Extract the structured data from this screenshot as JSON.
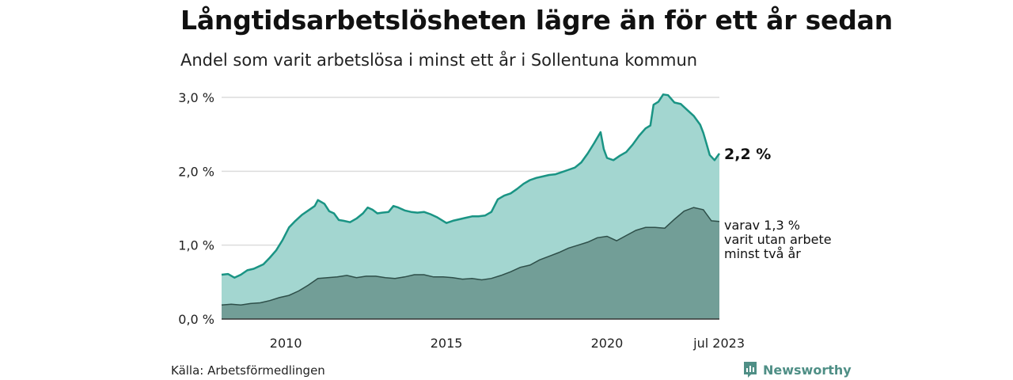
{
  "title": "Långtidsarbetslösheten lägre än för ett år sedan",
  "subtitle": "Andel som varit arbetslösa i minst ett år i Sollentuna kommun",
  "source": "Källa: Arbetsförmedlingen",
  "logo": {
    "text": "Newsworthy",
    "icon": "newsworthy-logo-icon",
    "color": "#4f8f86"
  },
  "chart_data": {
    "type": "area",
    "ylim": [
      0,
      3.0
    ],
    "grid": true,
    "y_ticks": [
      {
        "value": 0,
        "label": "0,0 %"
      },
      {
        "value": 1,
        "label": "1,0 %"
      },
      {
        "value": 2,
        "label": "2,0 %"
      },
      {
        "value": 3,
        "label": "3,0 %"
      }
    ],
    "x_range": [
      2008.0,
      2023.5
    ],
    "x_ticks": [
      {
        "value": 2010,
        "label": "2010"
      },
      {
        "value": 2015,
        "label": "2015"
      },
      {
        "value": 2020,
        "label": "2020"
      },
      {
        "value": 2023.5,
        "label": "jul 2023"
      }
    ],
    "series": [
      {
        "key": "total",
        "color": "#1a9484",
        "fill": "#a3d6d0",
        "end_label": "2,2 %",
        "points": [
          [
            2008.0,
            0.6
          ],
          [
            2008.2,
            0.61
          ],
          [
            2008.4,
            0.56
          ],
          [
            2008.6,
            0.6
          ],
          [
            2008.8,
            0.66
          ],
          [
            2009.0,
            0.68
          ],
          [
            2009.3,
            0.74
          ],
          [
            2009.5,
            0.83
          ],
          [
            2009.7,
            0.93
          ],
          [
            2009.9,
            1.07
          ],
          [
            2010.1,
            1.24
          ],
          [
            2010.3,
            1.33
          ],
          [
            2010.5,
            1.41
          ],
          [
            2010.7,
            1.47
          ],
          [
            2010.9,
            1.53
          ],
          [
            2011.0,
            1.61
          ],
          [
            2011.2,
            1.56
          ],
          [
            2011.35,
            1.46
          ],
          [
            2011.5,
            1.43
          ],
          [
            2011.65,
            1.34
          ],
          [
            2011.8,
            1.33
          ],
          [
            2012.0,
            1.31
          ],
          [
            2012.2,
            1.36
          ],
          [
            2012.4,
            1.43
          ],
          [
            2012.55,
            1.51
          ],
          [
            2012.7,
            1.48
          ],
          [
            2012.85,
            1.43
          ],
          [
            2013.0,
            1.44
          ],
          [
            2013.2,
            1.45
          ],
          [
            2013.35,
            1.53
          ],
          [
            2013.5,
            1.51
          ],
          [
            2013.7,
            1.47
          ],
          [
            2013.9,
            1.45
          ],
          [
            2014.1,
            1.44
          ],
          [
            2014.3,
            1.45
          ],
          [
            2014.5,
            1.42
          ],
          [
            2014.7,
            1.38
          ],
          [
            2014.85,
            1.34
          ],
          [
            2015.0,
            1.3
          ],
          [
            2015.2,
            1.33
          ],
          [
            2015.4,
            1.35
          ],
          [
            2015.6,
            1.37
          ],
          [
            2015.8,
            1.39
          ],
          [
            2016.0,
            1.39
          ],
          [
            2016.2,
            1.4
          ],
          [
            2016.4,
            1.45
          ],
          [
            2016.6,
            1.62
          ],
          [
            2016.8,
            1.67
          ],
          [
            2017.0,
            1.7
          ],
          [
            2017.2,
            1.76
          ],
          [
            2017.4,
            1.83
          ],
          [
            2017.6,
            1.88
          ],
          [
            2017.8,
            1.91
          ],
          [
            2018.0,
            1.93
          ],
          [
            2018.2,
            1.95
          ],
          [
            2018.4,
            1.96
          ],
          [
            2018.6,
            1.99
          ],
          [
            2018.8,
            2.02
          ],
          [
            2019.0,
            2.05
          ],
          [
            2019.2,
            2.12
          ],
          [
            2019.4,
            2.24
          ],
          [
            2019.6,
            2.38
          ],
          [
            2019.8,
            2.53
          ],
          [
            2019.9,
            2.3
          ],
          [
            2020.0,
            2.18
          ],
          [
            2020.2,
            2.15
          ],
          [
            2020.4,
            2.21
          ],
          [
            2020.6,
            2.26
          ],
          [
            2020.8,
            2.36
          ],
          [
            2021.0,
            2.48
          ],
          [
            2021.2,
            2.58
          ],
          [
            2021.35,
            2.62
          ],
          [
            2021.45,
            2.9
          ],
          [
            2021.6,
            2.94
          ],
          [
            2021.75,
            3.04
          ],
          [
            2021.9,
            3.03
          ],
          [
            2022.1,
            2.93
          ],
          [
            2022.3,
            2.91
          ],
          [
            2022.5,
            2.83
          ],
          [
            2022.7,
            2.75
          ],
          [
            2022.9,
            2.63
          ],
          [
            2023.0,
            2.52
          ],
          [
            2023.1,
            2.37
          ],
          [
            2023.2,
            2.22
          ],
          [
            2023.35,
            2.15
          ],
          [
            2023.5,
            2.24
          ]
        ]
      },
      {
        "key": "two_years",
        "color": "#2e4f49",
        "fill": "#729e97",
        "end_label_lines": [
          "varav 1,3 %",
          "varit utan arbete",
          "minst två år"
        ],
        "points": [
          [
            2008.0,
            0.19
          ],
          [
            2008.3,
            0.2
          ],
          [
            2008.6,
            0.19
          ],
          [
            2008.9,
            0.21
          ],
          [
            2009.2,
            0.22
          ],
          [
            2009.5,
            0.25
          ],
          [
            2009.8,
            0.29
          ],
          [
            2010.1,
            0.32
          ],
          [
            2010.4,
            0.38
          ],
          [
            2010.7,
            0.46
          ],
          [
            2011.0,
            0.55
          ],
          [
            2011.3,
            0.56
          ],
          [
            2011.6,
            0.57
          ],
          [
            2011.9,
            0.59
          ],
          [
            2012.2,
            0.56
          ],
          [
            2012.5,
            0.58
          ],
          [
            2012.8,
            0.58
          ],
          [
            2013.1,
            0.56
          ],
          [
            2013.4,
            0.55
          ],
          [
            2013.7,
            0.57
          ],
          [
            2014.0,
            0.6
          ],
          [
            2014.3,
            0.6
          ],
          [
            2014.6,
            0.57
          ],
          [
            2014.9,
            0.57
          ],
          [
            2015.2,
            0.56
          ],
          [
            2015.5,
            0.54
          ],
          [
            2015.8,
            0.55
          ],
          [
            2016.1,
            0.53
          ],
          [
            2016.4,
            0.55
          ],
          [
            2016.7,
            0.59
          ],
          [
            2017.0,
            0.64
          ],
          [
            2017.3,
            0.7
          ],
          [
            2017.6,
            0.73
          ],
          [
            2017.9,
            0.8
          ],
          [
            2018.2,
            0.85
          ],
          [
            2018.5,
            0.9
          ],
          [
            2018.8,
            0.96
          ],
          [
            2019.1,
            1.0
          ],
          [
            2019.4,
            1.04
          ],
          [
            2019.7,
            1.1
          ],
          [
            2020.0,
            1.12
          ],
          [
            2020.3,
            1.06
          ],
          [
            2020.6,
            1.13
          ],
          [
            2020.9,
            1.2
          ],
          [
            2021.2,
            1.24
          ],
          [
            2021.5,
            1.24
          ],
          [
            2021.8,
            1.23
          ],
          [
            2022.1,
            1.35
          ],
          [
            2022.4,
            1.46
          ],
          [
            2022.7,
            1.51
          ],
          [
            2023.0,
            1.48
          ],
          [
            2023.25,
            1.33
          ],
          [
            2023.5,
            1.32
          ]
        ]
      }
    ]
  }
}
